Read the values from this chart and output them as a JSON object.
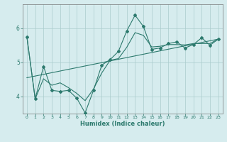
{
  "xlabel": "Humidex (Indice chaleur)",
  "bg_color": "#d6ecee",
  "grid_color": "#aacccc",
  "line_color": "#2d7a6e",
  "xlim": [
    -0.5,
    23.5
  ],
  "ylim": [
    3.5,
    6.7
  ],
  "yticks": [
    4,
    5,
    6
  ],
  "xticks": [
    0,
    1,
    2,
    3,
    4,
    5,
    6,
    7,
    8,
    9,
    10,
    11,
    12,
    13,
    14,
    15,
    16,
    17,
    18,
    19,
    20,
    21,
    22,
    23
  ],
  "main_x": [
    0,
    1,
    2,
    3,
    4,
    5,
    6,
    7,
    8,
    9,
    10,
    11,
    12,
    13,
    14,
    15,
    16,
    17,
    18,
    19,
    20,
    21,
    22,
    23
  ],
  "main_y": [
    5.75,
    3.93,
    4.88,
    4.18,
    4.15,
    4.18,
    3.95,
    3.52,
    4.18,
    4.92,
    5.08,
    5.32,
    5.92,
    6.38,
    6.05,
    5.38,
    5.42,
    5.55,
    5.6,
    5.42,
    5.52,
    5.72,
    5.5,
    5.68
  ],
  "smooth_x": [
    0,
    1,
    2,
    3,
    4,
    5,
    6,
    7,
    8,
    9,
    10,
    11,
    12,
    13,
    14,
    15,
    16,
    17,
    18,
    19,
    20,
    21,
    22,
    23
  ],
  "smooth_y": [
    5.75,
    3.93,
    4.52,
    4.33,
    4.4,
    4.26,
    4.09,
    3.88,
    4.22,
    4.69,
    5.06,
    5.11,
    5.44,
    5.87,
    5.79,
    5.45,
    5.47,
    5.52,
    5.52,
    5.51,
    5.55,
    5.55,
    5.55,
    5.68
  ],
  "trend_x": [
    0,
    23
  ],
  "trend_y": [
    4.55,
    5.68
  ]
}
